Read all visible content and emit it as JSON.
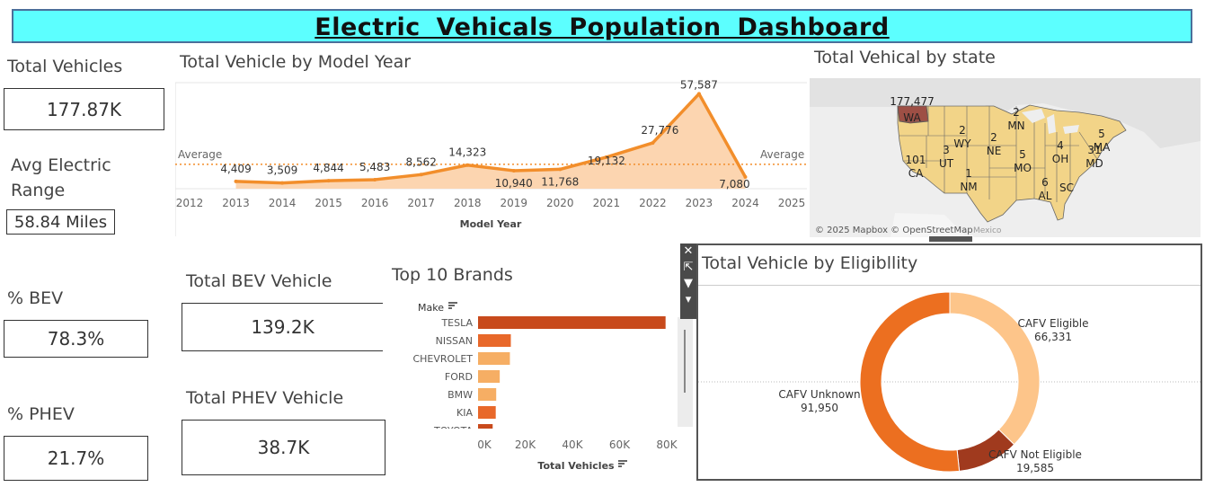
{
  "title": "Electric   Vehicals  Population  Dashboard",
  "kpis": {
    "total_vehicles_label": "Total Vehicles",
    "total_vehicles_value": "177.87K",
    "avg_range_label_1": "Avg Electric",
    "avg_range_label_2": "Range",
    "avg_range_value": "58.84 Miles",
    "pct_bev_label": "% BEV",
    "pct_bev_value": "78.3%",
    "pct_phev_label": "% PHEV",
    "pct_phev_value": "21.7%",
    "total_bev_label": "Total BEV Vehicle",
    "total_bev_value": "139.2K",
    "total_phev_label": "Total PHEV Vehicle",
    "total_phev_value": "38.7K"
  },
  "colors": {
    "title_bg": "#5cffff",
    "line": "#f28e2b",
    "area": "#fcd5b0",
    "average": "#f28e2b",
    "map_fill": "#f2d488",
    "map_high": "#9e4f45",
    "bar_dark": "#c84a1c",
    "bar_mid": "#e8682a",
    "bar_light": "#f6ae64",
    "donut_eligible": "#fdc58a",
    "donut_not": "#a03a1e",
    "donut_unknown": "#ec6f20"
  },
  "toolbar_icons": [
    "close-icon",
    "popout-icon",
    "filter-icon",
    "dropdown-icon"
  ],
  "chart_data": [
    {
      "type": "area",
      "title": "Total Vehicle by Model Year",
      "xlabel": "Model Year",
      "ylabel": "",
      "x_ticks": [
        "2012",
        "2013",
        "2014",
        "2015",
        "2016",
        "2017",
        "2018",
        "2019",
        "2020",
        "2021",
        "2022",
        "2023",
        "2024",
        "2025"
      ],
      "x": [
        2013,
        2014,
        2015,
        2016,
        2017,
        2018,
        2019,
        2020,
        2021,
        2022,
        2023,
        2024
      ],
      "values": [
        4409,
        3509,
        4844,
        5483,
        8562,
        14323,
        10940,
        11768,
        19132,
        27776,
        57587,
        7080
      ],
      "labels": [
        "4,409",
        "3,509",
        "4,844",
        "5,483",
        "8,562",
        "14,323",
        "10,940",
        "11,768",
        "19,132",
        "27,776",
        "57,587",
        "7,080"
      ],
      "reference_line": {
        "label_left": "Average",
        "label_right": "Average",
        "value": 14822
      },
      "ylim": [
        0,
        60000
      ],
      "grid": true
    },
    {
      "type": "map",
      "title": "Total Vehical by state",
      "attribution": "© 2025 Mapbox © OpenStreetMap",
      "country_label": "Mexico",
      "states": [
        {
          "state": "WA",
          "value": "177,477"
        },
        {
          "state": "CA",
          "value": "101"
        },
        {
          "state": "UT",
          "value": "3"
        },
        {
          "state": "WY",
          "value": "2"
        },
        {
          "state": "NE",
          "value": "2"
        },
        {
          "state": "MN",
          "value": "2"
        },
        {
          "state": "NM",
          "value": "1"
        },
        {
          "state": "MO",
          "value": "5"
        },
        {
          "state": "OH",
          "value": "4"
        },
        {
          "state": "MD",
          "value": "31"
        },
        {
          "state": "MA",
          "value": "5"
        },
        {
          "state": "AL",
          "value": "6"
        },
        {
          "state": "SC",
          "value": ""
        }
      ]
    },
    {
      "type": "bar",
      "title": "Top 10 Brands",
      "orientation": "horizontal",
      "y_header": "Make",
      "xlabel": "Total Vehicles",
      "categories": [
        "TESLA",
        "NISSAN",
        "CHEVROLET",
        "FORD",
        "BMW",
        "KIA",
        "TOYOTA"
      ],
      "values": [
        79500,
        13900,
        13500,
        9200,
        7700,
        7500,
        6200
      ],
      "x_ticks": [
        "0K",
        "20K",
        "40K",
        "60K",
        "80K"
      ],
      "xlim": [
        0,
        80000
      ]
    },
    {
      "type": "pie",
      "donut": true,
      "title": "Total Vehicle by Eligibllity",
      "slices": [
        {
          "label": "CAFV Eligible",
          "value": 66331,
          "value_label": "66,331"
        },
        {
          "label": "CAFV Not Eligible",
          "value": 19585,
          "value_label": "19,585"
        },
        {
          "label": "CAFV Unknown",
          "value": 91950,
          "value_label": "91,950"
        }
      ]
    }
  ]
}
